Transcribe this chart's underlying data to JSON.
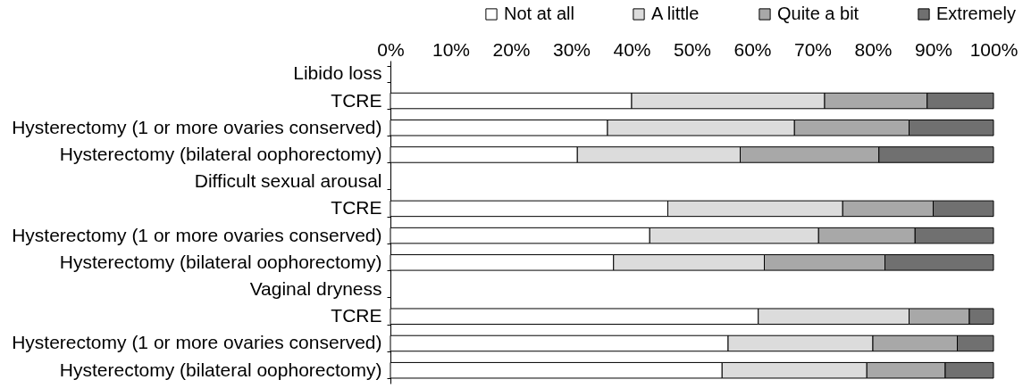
{
  "chart_data": {
    "type": "bar",
    "orientation": "horizontal",
    "stacked": true,
    "categories": [
      "Libido loss",
      "TCRE",
      "Hysterectomy (1 or more ovaries conserved)",
      "Hysterectomy (bilateral oophorectomy)",
      "Difficult sexual arousal",
      "TCRE",
      "Hysterectomy (1 or more ovaries conserved)",
      "Hysterectomy (bilateral oophorectomy)",
      "Vaginal dryness",
      "TCRE",
      "Hysterectomy (1 or more ovaries conserved)",
      "Hysterectomy (bilateral oophorectomy)"
    ],
    "series": [
      {
        "name": "Not at all",
        "color": "#ffffff",
        "values": [
          null,
          40,
          36,
          31,
          null,
          46,
          43,
          37,
          null,
          61,
          56,
          55
        ]
      },
      {
        "name": "A little",
        "color": "#dcdcdc",
        "values": [
          null,
          32,
          31,
          27,
          null,
          29,
          28,
          25,
          null,
          25,
          24,
          24
        ]
      },
      {
        "name": "Quite a bit",
        "color": "#a8a8a8",
        "values": [
          null,
          17,
          19,
          23,
          null,
          15,
          16,
          20,
          null,
          10,
          14,
          13
        ]
      },
      {
        "name": "Extremely",
        "color": "#707070",
        "values": [
          null,
          11,
          14,
          19,
          null,
          10,
          13,
          18,
          null,
          4,
          6,
          8
        ]
      }
    ],
    "xlim": [
      0,
      100
    ],
    "xticks": [
      {
        "value": 0,
        "label": "0%"
      },
      {
        "value": 10,
        "label": "10%"
      },
      {
        "value": 20,
        "label": "20%"
      },
      {
        "value": 30,
        "label": "30%"
      },
      {
        "value": 40,
        "label": "40%"
      },
      {
        "value": 50,
        "label": "50%"
      },
      {
        "value": 60,
        "label": "60%"
      },
      {
        "value": 70,
        "label": "70%"
      },
      {
        "value": 80,
        "label": "80%"
      },
      {
        "value": 90,
        "label": "90%"
      },
      {
        "value": 100,
        "label": "100%"
      }
    ],
    "legend": "top right",
    "grid": false
  }
}
